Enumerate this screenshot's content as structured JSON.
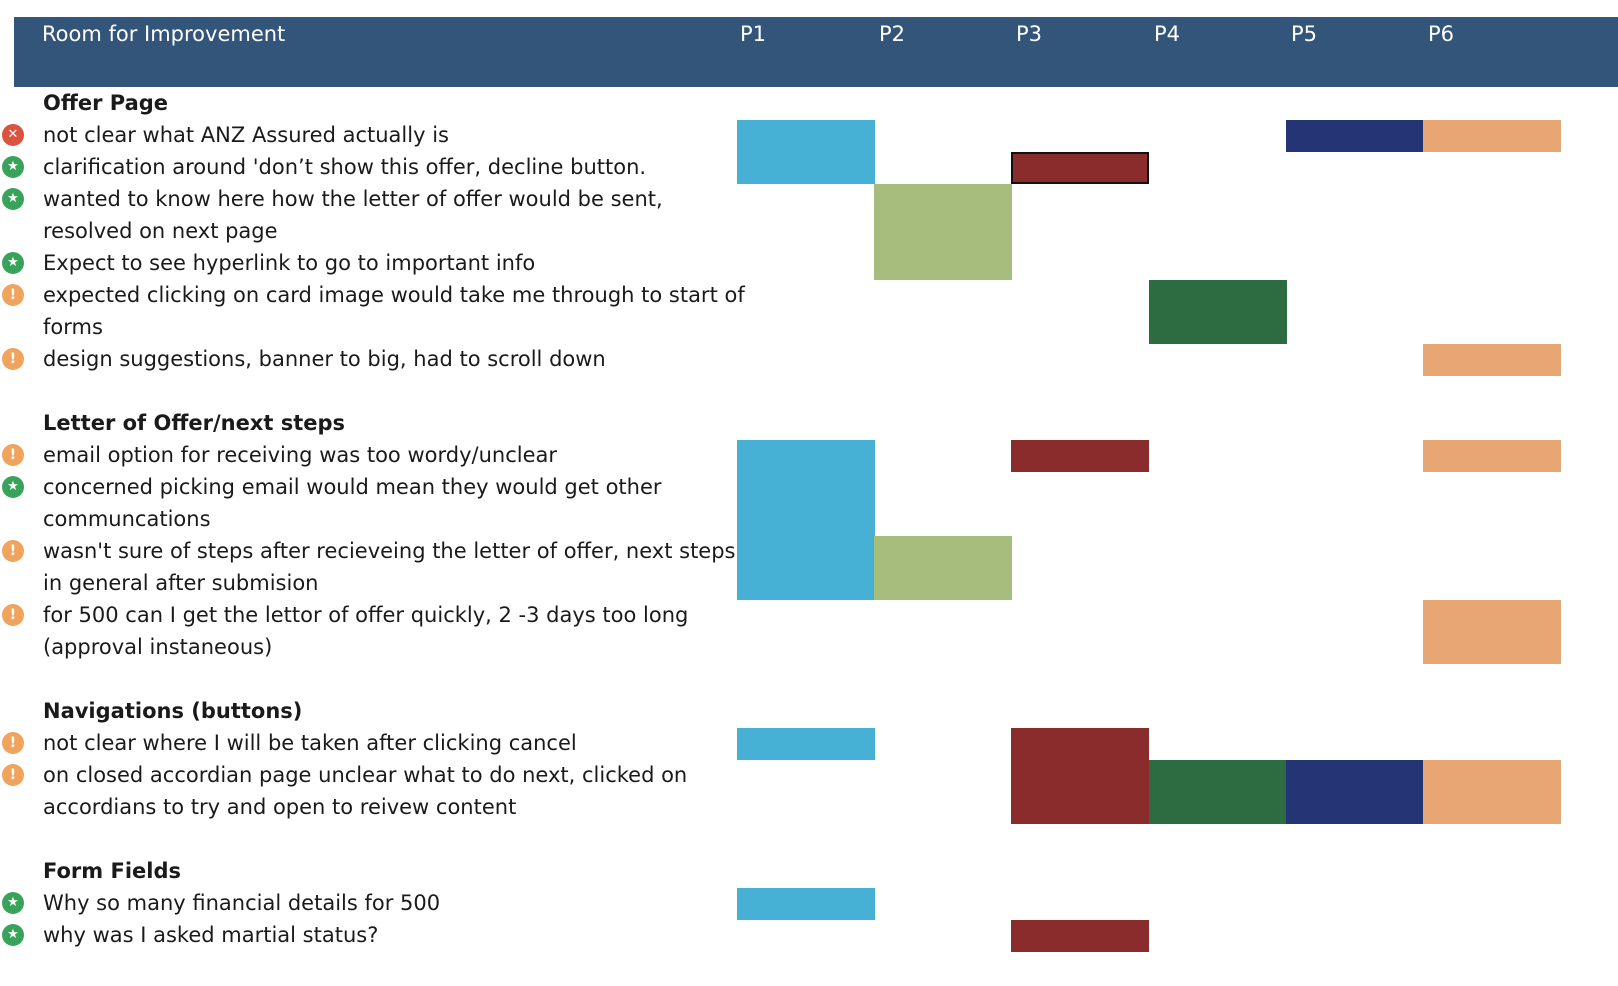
{
  "chart_data": {
    "type": "table",
    "title": "Room for Improvement",
    "participants": [
      "P1",
      "P2",
      "P3",
      "P4",
      "P5",
      "P6"
    ],
    "participant_colors": {
      "P1": "#46b0d5",
      "P2": "#a6bd7d",
      "P3": "#8b2c2c",
      "P4": "#2d6b41",
      "P5": "#253474",
      "P6": "#e8a675"
    },
    "header_color": "#33557a",
    "status_colors": {
      "error": "#d9533f",
      "positive": "#3aa35b",
      "warning": "#f0a35c"
    },
    "rows": [
      {
        "kind": "section",
        "label": "Offer Page"
      },
      {
        "kind": "item",
        "status": "error",
        "lines": [
          "not clear what ANZ Assured actually is"
        ],
        "flags": [
          1,
          0,
          0,
          0,
          1,
          1
        ]
      },
      {
        "kind": "item",
        "status": "positive",
        "lines": [
          "clarification around 'don’t show this offer, decline button."
        ],
        "flags": [
          1,
          0,
          1,
          0,
          0,
          0
        ]
      },
      {
        "kind": "item",
        "status": "positive",
        "lines": [
          "wanted to know here how the letter of offer would be sent,",
          "resolved on next page"
        ],
        "flags": [
          0,
          1,
          0,
          0,
          0,
          0
        ]
      },
      {
        "kind": "item",
        "status": "positive",
        "lines": [
          "Expect to see hyperlink to go to important info"
        ],
        "flags": [
          0,
          1,
          0,
          0,
          0,
          0
        ]
      },
      {
        "kind": "item",
        "status": "warning",
        "lines": [
          "expected clicking on card image would take me through to start of",
          "forms"
        ],
        "flags": [
          0,
          0,
          0,
          1,
          0,
          0
        ]
      },
      {
        "kind": "item",
        "status": "warning",
        "lines": [
          "design suggestions, banner to big, had to scroll down"
        ],
        "flags": [
          0,
          0,
          0,
          0,
          0,
          1
        ]
      },
      {
        "kind": "spacer"
      },
      {
        "kind": "section",
        "label": "Letter of Offer/next steps"
      },
      {
        "kind": "item",
        "status": "warning",
        "lines": [
          "email option for receiving was too wordy/unclear"
        ],
        "flags": [
          1,
          0,
          1,
          0,
          0,
          1
        ]
      },
      {
        "kind": "item",
        "status": "positive",
        "lines": [
          "concerned picking email would mean they would get other",
          "communcations"
        ],
        "flags": [
          1,
          0,
          0,
          0,
          0,
          0
        ]
      },
      {
        "kind": "item",
        "status": "warning",
        "lines": [
          "wasn't sure of steps after recieveing the letter of offer, next steps",
          "in general after submision"
        ],
        "flags": [
          1,
          1,
          0,
          0,
          0,
          0
        ]
      },
      {
        "kind": "item",
        "status": "warning",
        "lines": [
          "for 500 can I get the lettor of offer quickly, 2 -3 days too long",
          "(approval instaneous)"
        ],
        "flags": [
          0,
          0,
          0,
          0,
          0,
          1
        ]
      },
      {
        "kind": "spacer"
      },
      {
        "kind": "section",
        "label": "Navigations (buttons)"
      },
      {
        "kind": "item",
        "status": "warning",
        "lines": [
          "not clear where I will be taken after clicking cancel"
        ],
        "flags": [
          1,
          0,
          1,
          0,
          0,
          0
        ]
      },
      {
        "kind": "item",
        "status": "warning",
        "lines": [
          "on closed accordian page unclear what to do next, clicked on",
          "accordians to try and open to reivew content"
        ],
        "flags": [
          0,
          0,
          1,
          1,
          1,
          1
        ]
      },
      {
        "kind": "spacer"
      },
      {
        "kind": "section",
        "label": "Form Fields"
      },
      {
        "kind": "item",
        "status": "positive",
        "lines": [
          "Why so many financial details for 500"
        ],
        "flags": [
          1,
          0,
          0,
          0,
          0,
          0
        ]
      },
      {
        "kind": "item",
        "status": "positive",
        "lines": [
          "why was I asked martial status?"
        ],
        "flags": [
          0,
          0,
          1,
          0,
          0,
          0
        ]
      }
    ]
  }
}
